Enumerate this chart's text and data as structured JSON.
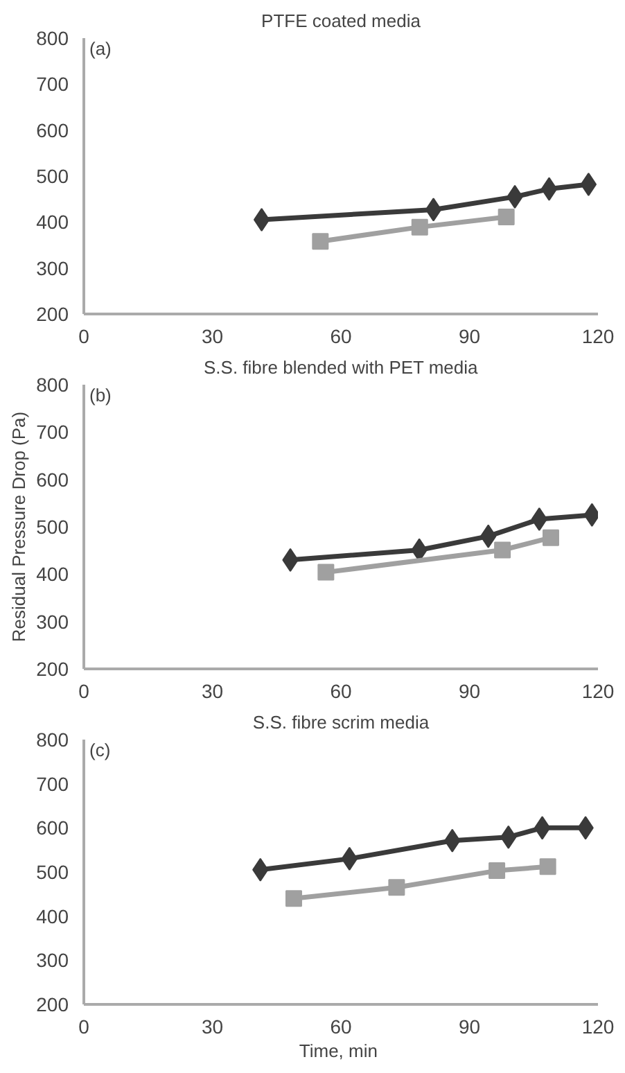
{
  "chart_data": [
    {
      "type": "line",
      "title": "PTFE coated media",
      "annotations": [
        "(a)"
      ],
      "xlim": [
        0,
        120
      ],
      "xticks": [
        0,
        30,
        60,
        90,
        120
      ],
      "ylim": [
        200,
        800
      ],
      "yticks": [
        200,
        300,
        400,
        500,
        600,
        700,
        800
      ],
      "series": [
        {
          "color": "#3a3a3a",
          "marker": "diamond",
          "x": [
            41.5,
            81.6,
            100.6,
            108.6,
            117.8
          ],
          "values": [
            405,
            427,
            455,
            472,
            482
          ]
        },
        {
          "color": "#a0a0a0",
          "marker": "square",
          "x": [
            55.2,
            78.4,
            98.6
          ],
          "values": [
            358,
            389,
            411
          ]
        }
      ]
    },
    {
      "type": "line",
      "title": "S.S. fibre blended with PET media",
      "ylabel": "Residual Pressure Drop (Pa)",
      "annotations": [
        "(b)"
      ],
      "xlim": [
        0,
        120
      ],
      "xticks": [
        0,
        30,
        60,
        90,
        120
      ],
      "ylim": [
        200,
        800
      ],
      "yticks": [
        200,
        300,
        400,
        500,
        600,
        700,
        800
      ],
      "series": [
        {
          "color": "#3a3a3a",
          "marker": "diamond",
          "x": [
            48.2,
            78.3,
            94.4,
            106.3,
            118.6
          ],
          "values": [
            430,
            451,
            480,
            516,
            525
          ]
        },
        {
          "color": "#a0a0a0",
          "marker": "square",
          "x": [
            56.5,
            97.7,
            109
          ],
          "values": [
            404,
            451,
            477
          ]
        }
      ]
    },
    {
      "type": "line",
      "title": "S.S. fibre scrim media",
      "xlabel": "Time,  min",
      "annotations": [
        "(c)"
      ],
      "xlim": [
        0,
        120
      ],
      "xticks": [
        0,
        30,
        60,
        90,
        120
      ],
      "ylim": [
        200,
        800
      ],
      "yticks": [
        200,
        300,
        400,
        500,
        600,
        700,
        800
      ],
      "series": [
        {
          "color": "#3a3a3a",
          "marker": "diamond",
          "x": [
            41.2,
            62,
            86,
            99.1,
            107,
            117.1
          ],
          "values": [
            505,
            530,
            571,
            579,
            600,
            600
          ]
        },
        {
          "color": "#a0a0a0",
          "marker": "square",
          "x": [
            49,
            73,
            96.4,
            108.3
          ],
          "values": [
            440,
            465,
            503,
            512
          ]
        }
      ]
    }
  ]
}
